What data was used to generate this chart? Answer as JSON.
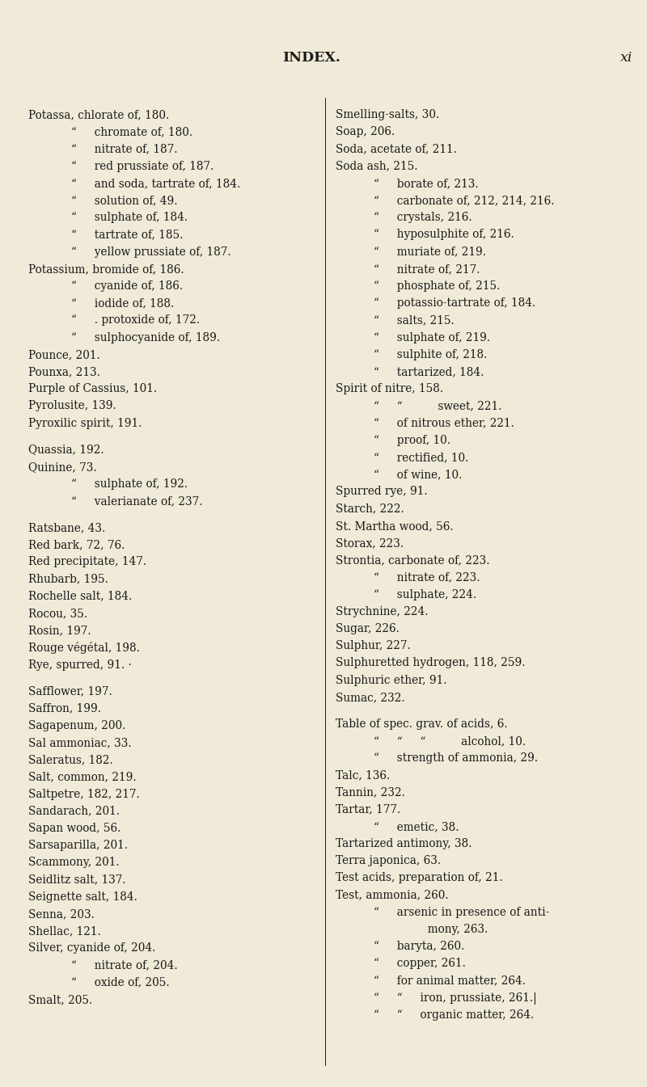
{
  "bg_color": "#f0ead8",
  "text_color": "#1a1a1a",
  "title": "INDEX.",
  "page_num": "xi",
  "title_fontsize": 12.5,
  "body_fontsize": 9.8,
  "left_col": [
    [
      "Potassa, chlorate of, 180.",
      0
    ],
    [
      "“     chromate of, 180.",
      1
    ],
    [
      "“     nitrate of, 187.",
      1
    ],
    [
      "“     red prussiate of, 187.",
      1
    ],
    [
      "“     and soda, tartrate of, 184.",
      1
    ],
    [
      "“     solution of, 49.",
      1
    ],
    [
      "“     sulphate of, 184.",
      1
    ],
    [
      "“     tartrate of, 185.",
      1
    ],
    [
      "“     yellow prussiate of, 187.",
      1
    ],
    [
      "Potassium, bromide of, 186.",
      0
    ],
    [
      "“     cyanide of, 186.",
      1
    ],
    [
      "“     iodide of, 188.",
      1
    ],
    [
      "“     . protoxide of, 172.",
      1
    ],
    [
      "“     sulphocyanide of, 189.",
      1
    ],
    [
      "Pounce, 201.",
      0
    ],
    [
      "Pounxa, 213.",
      0
    ],
    [
      "Purple of Cassius, 101.",
      0
    ],
    [
      "Pyrolusite, 139.",
      0
    ],
    [
      "Pyroxilic spirit, 191.",
      0
    ],
    [
      "",
      0
    ],
    [
      "Quassia, 192.",
      0
    ],
    [
      "Quinine, 73.",
      0
    ],
    [
      "“     sulphate of, 192.",
      1
    ],
    [
      "“     valerianate of, 237.",
      1
    ],
    [
      "",
      0
    ],
    [
      "Ratsbane, 43.",
      0
    ],
    [
      "Red bark, 72, 76.",
      0
    ],
    [
      "Red precipitate, 147.",
      0
    ],
    [
      "Rhubarb, 195.",
      0
    ],
    [
      "Rochelle salt, 184.",
      0
    ],
    [
      "Rocou, 35.",
      0
    ],
    [
      "Rosin, 197.",
      0
    ],
    [
      "Rouge végétal, 198.",
      0
    ],
    [
      "Rye, spurred, 91. ·",
      0
    ],
    [
      "",
      0
    ],
    [
      "Safflower, 197.",
      0
    ],
    [
      "Saffron, 199.",
      0
    ],
    [
      "Sagapenum, 200.",
      0
    ],
    [
      "Sal ammoniac, 33.",
      0
    ],
    [
      "Saleratus, 182.",
      0
    ],
    [
      "Salt, common, 219.",
      0
    ],
    [
      "Saltpetre, 182, 217.",
      0
    ],
    [
      "Sandarach, 201.",
      0
    ],
    [
      "Sapan wood, 56.",
      0
    ],
    [
      "Sarsaparilla, 201.",
      0
    ],
    [
      "Scammony, 201.",
      0
    ],
    [
      "Seidlitz salt, 137.",
      0
    ],
    [
      "Seignette salt, 184.",
      0
    ],
    [
      "Senna, 203.",
      0
    ],
    [
      "Shellac, 121.",
      0
    ],
    [
      "Silver, cyanide of, 204.",
      0
    ],
    [
      "“     nitrate of, 204.",
      1
    ],
    [
      "“     oxide of, 205.",
      1
    ],
    [
      "Smalt, 205.",
      0
    ]
  ],
  "right_col": [
    [
      "Smelling-salts, 30.",
      0
    ],
    [
      "Soap, 206.",
      0
    ],
    [
      "Soda, acetate of, 211.",
      0
    ],
    [
      "Soda ash, 215.",
      0
    ],
    [
      "“     borate of, 213.",
      1
    ],
    [
      "“     carbonate of, 212, 214, 216.",
      1
    ],
    [
      "“     crystals, 216.",
      1
    ],
    [
      "“     hyposulphite of, 216.",
      1
    ],
    [
      "“     muriate of, 219.",
      1
    ],
    [
      "“     nitrate of, 217.",
      1
    ],
    [
      "“     phosphate of, 215.",
      1
    ],
    [
      "“     potassio-tartrate of, 184.",
      1
    ],
    [
      "“     salts, 215.",
      1
    ],
    [
      "“     sulphate of, 219.",
      1
    ],
    [
      "“     sulphite of, 218.",
      1
    ],
    [
      "“     tartarized, 184.",
      1
    ],
    [
      "Spirit of nitre, 158.",
      0
    ],
    [
      "“     “          sweet, 221.",
      1
    ],
    [
      "“     of nitrous ether, 221.",
      1
    ],
    [
      "“     proof, 10.",
      1
    ],
    [
      "“     rectified, 10.",
      1
    ],
    [
      "“     of wine, 10.",
      1
    ],
    [
      "Spurred rye, 91.",
      0
    ],
    [
      "Starch, 222.",
      0
    ],
    [
      "St. Martha wood, 56.",
      0
    ],
    [
      "Storax, 223.",
      0
    ],
    [
      "Strontia, carbonate of, 223.",
      0
    ],
    [
      "“     nitrate of, 223.",
      1
    ],
    [
      "“     sulphate, 224.",
      1
    ],
    [
      "Strychnine, 224.",
      0
    ],
    [
      "Sugar, 226.",
      0
    ],
    [
      "Sulphur, 227.",
      0
    ],
    [
      "Sulphuretted hydrogen, 118, 259.",
      0
    ],
    [
      "Sulphuric ether, 91.",
      0
    ],
    [
      "Sumac, 232.",
      0
    ],
    [
      "",
      0
    ],
    [
      "Table of spec. grav. of acids, 6.",
      0
    ],
    [
      "“     “     “          alcohol, 10.",
      1
    ],
    [
      "“     strength of ammonia, 29.",
      1
    ],
    [
      "Talc, 136.",
      0
    ],
    [
      "Tannin, 232.",
      0
    ],
    [
      "Tartar, 177.",
      0
    ],
    [
      "“     emetic, 38.",
      1
    ],
    [
      "Tartarized antimony, 38.",
      0
    ],
    [
      "Terra japonica, 63.",
      0
    ],
    [
      "Test acids, preparation of, 21.",
      0
    ],
    [
      "Test, ammonia, 260.",
      0
    ],
    [
      "“     arsenic in presence of anti-",
      1
    ],
    [
      "          mony, 263.",
      2
    ],
    [
      "“     baryta, 260.",
      1
    ],
    [
      "“     copper, 261.",
      1
    ],
    [
      "“     for animal matter, 264.",
      1
    ],
    [
      "“     “     iron, prussiate, 261.|",
      1
    ],
    [
      "“     “     organic matter, 264.",
      1
    ]
  ]
}
